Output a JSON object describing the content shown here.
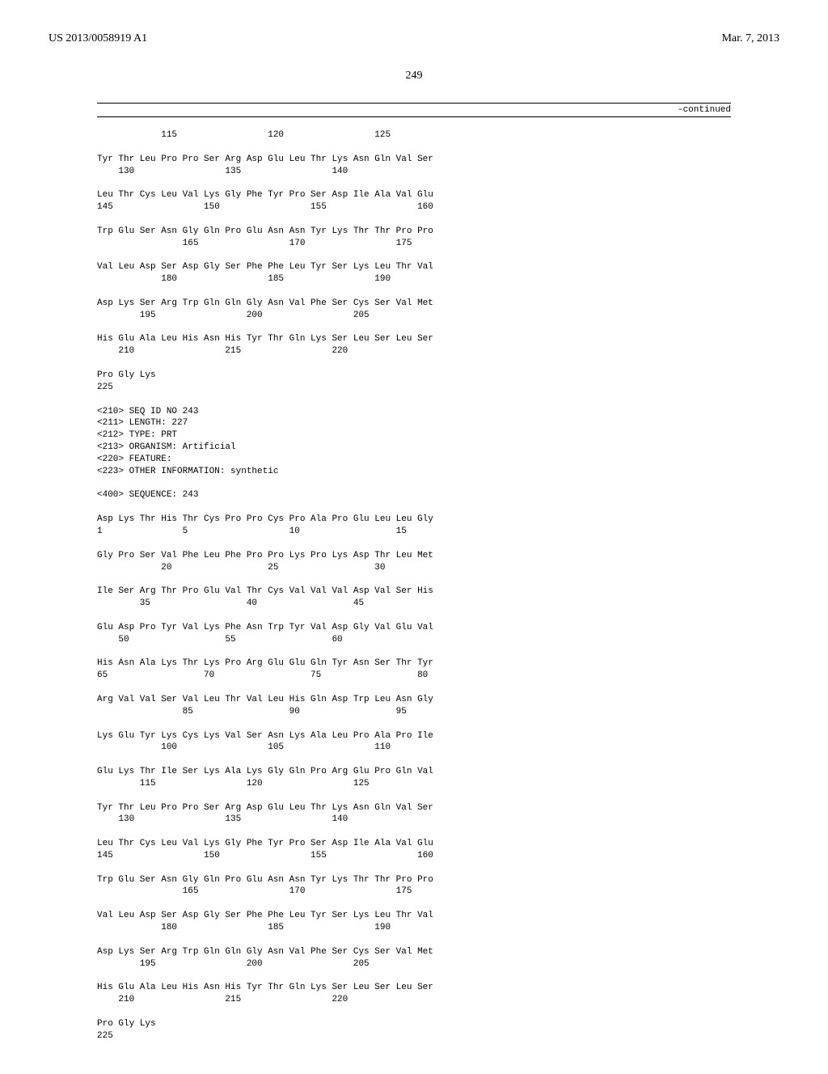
{
  "header": {
    "doc_id": "US 2013/0058919 A1",
    "date": "Mar. 7, 2013"
  },
  "page_number": "249",
  "continued_label": "-continued",
  "seq1": {
    "lines": [
      "            115                 120                 125",
      "",
      "Tyr Thr Leu Pro Pro Ser Arg Asp Glu Leu Thr Lys Asn Gln Val Ser",
      "    130                 135                 140",
      "",
      "Leu Thr Cys Leu Val Lys Gly Phe Tyr Pro Ser Asp Ile Ala Val Glu",
      "145                 150                 155                 160",
      "",
      "Trp Glu Ser Asn Gly Gln Pro Glu Asn Asn Tyr Lys Thr Thr Pro Pro",
      "                165                 170                 175",
      "",
      "Val Leu Asp Ser Asp Gly Ser Phe Phe Leu Tyr Ser Lys Leu Thr Val",
      "            180                 185                 190",
      "",
      "Asp Lys Ser Arg Trp Gln Gln Gly Asn Val Phe Ser Cys Ser Val Met",
      "        195                 200                 205",
      "",
      "His Glu Ala Leu His Asn His Tyr Thr Gln Lys Ser Leu Ser Leu Ser",
      "    210                 215                 220",
      "",
      "Pro Gly Lys",
      "225"
    ]
  },
  "metadata": {
    "lines": [
      "<210> SEQ ID NO 243",
      "<211> LENGTH: 227",
      "<212> TYPE: PRT",
      "<213> ORGANISM: Artificial",
      "<220> FEATURE:",
      "<223> OTHER INFORMATION: synthetic",
      "",
      "<400> SEQUENCE: 243"
    ]
  },
  "seq2": {
    "lines": [
      "Asp Lys Thr His Thr Cys Pro Pro Cys Pro Ala Pro Glu Leu Leu Gly",
      "1               5                   10                  15",
      "",
      "Gly Pro Ser Val Phe Leu Phe Pro Pro Lys Pro Lys Asp Thr Leu Met",
      "            20                  25                  30",
      "",
      "Ile Ser Arg Thr Pro Glu Val Thr Cys Val Val Val Asp Val Ser His",
      "        35                  40                  45",
      "",
      "Glu Asp Pro Tyr Val Lys Phe Asn Trp Tyr Val Asp Gly Val Glu Val",
      "    50                  55                  60",
      "",
      "His Asn Ala Lys Thr Lys Pro Arg Glu Glu Gln Tyr Asn Ser Thr Tyr",
      "65                  70                  75                  80",
      "",
      "Arg Val Val Ser Val Leu Thr Val Leu His Gln Asp Trp Leu Asn Gly",
      "                85                  90                  95",
      "",
      "Lys Glu Tyr Lys Cys Lys Val Ser Asn Lys Ala Leu Pro Ala Pro Ile",
      "            100                 105                 110",
      "",
      "Glu Lys Thr Ile Ser Lys Ala Lys Gly Gln Pro Arg Glu Pro Gln Val",
      "        115                 120                 125",
      "",
      "Tyr Thr Leu Pro Pro Ser Arg Asp Glu Leu Thr Lys Asn Gln Val Ser",
      "    130                 135                 140",
      "",
      "Leu Thr Cys Leu Val Lys Gly Phe Tyr Pro Ser Asp Ile Ala Val Glu",
      "145                 150                 155                 160",
      "",
      "Trp Glu Ser Asn Gly Gln Pro Glu Asn Asn Tyr Lys Thr Thr Pro Pro",
      "                165                 170                 175",
      "",
      "Val Leu Asp Ser Asp Gly Ser Phe Phe Leu Tyr Ser Lys Leu Thr Val",
      "            180                 185                 190",
      "",
      "Asp Lys Ser Arg Trp Gln Gln Gly Asn Val Phe Ser Cys Ser Val Met",
      "        195                 200                 205",
      "",
      "His Glu Ala Leu His Asn His Tyr Thr Gln Lys Ser Leu Ser Leu Ser",
      "    210                 215                 220",
      "",
      "Pro Gly Lys",
      "225"
    ]
  }
}
